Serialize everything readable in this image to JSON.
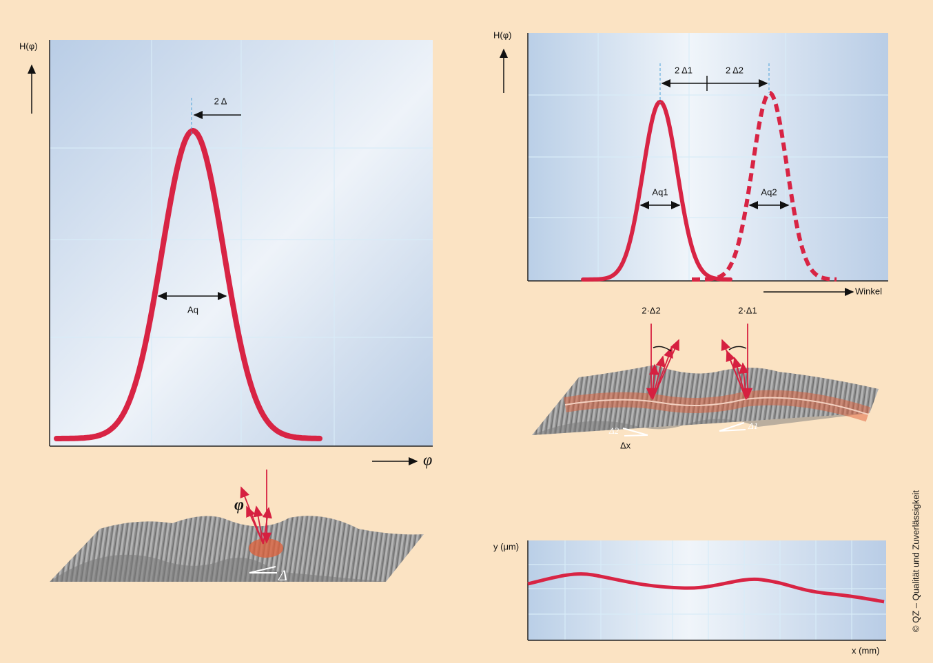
{
  "left_chart": {
    "y_axis_label": "H(φ)",
    "x_axis_label": "φ",
    "shift_label": "2 Δ",
    "width_label": "Aq"
  },
  "left_surface": {
    "angle_label": "φ",
    "tilt_label": "Δ"
  },
  "right_chart": {
    "y_axis_label": "H(φ)",
    "shift_labels": [
      "2 Δ1",
      "2 Δ2"
    ],
    "width_labels": [
      "Aq1",
      "Aq2"
    ],
    "x_axis_label": "Winkel"
  },
  "right_surface": {
    "angle_labels": [
      "2·Δ2",
      "2·Δ1"
    ],
    "tilt_labels": [
      "Δ2",
      "Δ1"
    ],
    "spacing_label": "Δx"
  },
  "profile_chart": {
    "y_axis_label": "y (μm)",
    "x_axis_label": "x (mm)"
  },
  "credit": "© QZ – Qualität und Zuverlässigkeit"
}
